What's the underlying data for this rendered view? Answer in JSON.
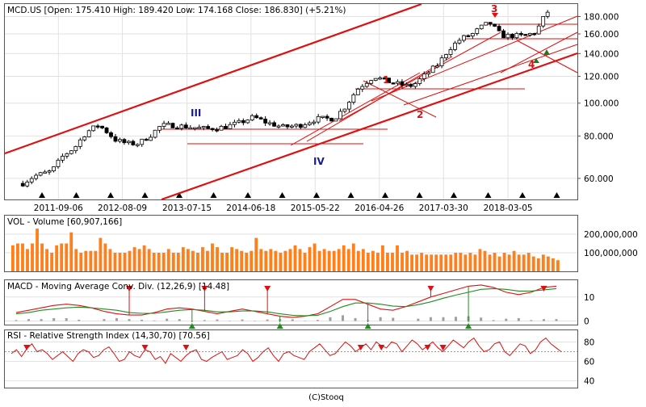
{
  "chart_data": [
    {
      "type": "candlestick",
      "title": "MCD.US [Open: 175.410  High: 189.420  Low: 174.168  Close: 186.830]  (+5.21%)",
      "y_scale": "log",
      "ylim": [
        52,
        196
      ],
      "y_ticks": [
        "60.000",
        "80.000",
        "100.000",
        "120.000",
        "140.000",
        "160.000",
        "180.000"
      ],
      "date_labels": [
        "2011-09-06",
        "2012-08-09",
        "2013-07-15",
        "2014-06-18",
        "2015-05-22",
        "2016-04-26",
        "2017-03-30",
        "2018-03-05"
      ],
      "annotations": [
        "III",
        "IV",
        "1",
        "2",
        "3",
        "4"
      ],
      "close_path": [
        {
          "date": "2011-03",
          "value": 58
        },
        {
          "date": "2011-05",
          "value": 61
        },
        {
          "date": "2011-08",
          "value": 63
        },
        {
          "date": "2011-10",
          "value": 70
        },
        {
          "date": "2011-12",
          "value": 74
        },
        {
          "date": "2012-02",
          "value": 82
        },
        {
          "date": "2012-04",
          "value": 86
        },
        {
          "date": "2012-05",
          "value": 84
        },
        {
          "date": "2012-07",
          "value": 78
        },
        {
          "date": "2012-09",
          "value": 76
        },
        {
          "date": "2012-11",
          "value": 76
        },
        {
          "date": "2013-01",
          "value": 80
        },
        {
          "date": "2013-03",
          "value": 86
        },
        {
          "date": "2013-05",
          "value": 86
        },
        {
          "date": "2013-08",
          "value": 85
        },
        {
          "date": "2013-11",
          "value": 84
        },
        {
          "date": "2014-02",
          "value": 85
        },
        {
          "date": "2014-05",
          "value": 88
        },
        {
          "date": "2014-07",
          "value": 91
        },
        {
          "date": "2014-09",
          "value": 88
        },
        {
          "date": "2014-12",
          "value": 85
        },
        {
          "date": "2015-03",
          "value": 86
        },
        {
          "date": "2015-06",
          "value": 90
        },
        {
          "date": "2015-09",
          "value": 90
        },
        {
          "date": "2015-11",
          "value": 98
        },
        {
          "date": "2016-01",
          "value": 110
        },
        {
          "date": "2016-03",
          "value": 117
        },
        {
          "date": "2016-04",
          "value": 120
        },
        {
          "date": "2016-06",
          "value": 116
        },
        {
          "date": "2016-08",
          "value": 114
        },
        {
          "date": "2016-10",
          "value": 112
        },
        {
          "date": "2016-11",
          "value": 114
        },
        {
          "date": "2017-01",
          "value": 122
        },
        {
          "date": "2017-03",
          "value": 130
        },
        {
          "date": "2017-05",
          "value": 145
        },
        {
          "date": "2017-07",
          "value": 155
        },
        {
          "date": "2017-09",
          "value": 160
        },
        {
          "date": "2017-11",
          "value": 170
        },
        {
          "date": "2017-12",
          "value": 172
        },
        {
          "date": "2018-02",
          "value": 158
        },
        {
          "date": "2018-04",
          "value": 158
        },
        {
          "date": "2018-06",
          "value": 158
        },
        {
          "date": "2018-08",
          "value": 162
        },
        {
          "date": "2018-09",
          "value": 175
        },
        {
          "date": "2018-10",
          "value": 186
        }
      ]
    },
    {
      "type": "bar",
      "title": "VOL - Volume [60,907,166]",
      "y_ticks": [
        "100,000,000",
        "200,000,000"
      ],
      "ylim": [
        0,
        300000000
      ],
      "values": [
        140000000.0,
        150000000.0,
        150000000.0,
        120000000.0,
        150000000.0,
        230000000.0,
        150000000.0,
        120000000.0,
        100000000.0,
        140000000.0,
        150000000.0,
        150000000.0,
        210000000.0,
        120000000.0,
        100000000.0,
        110000000.0,
        110000000.0,
        110000000.0,
        180000000.0,
        150000000.0,
        120000000.0,
        100000000.0,
        100000000.0,
        100000000.0,
        110000000.0,
        130000000.0,
        120000000.0,
        140000000.0,
        120000000.0,
        100000000.0,
        100000000.0,
        100000000.0,
        120000000.0,
        100000000.0,
        100000000.0,
        130000000.0,
        120000000.0,
        110000000.0,
        100000000.0,
        130000000.0,
        110000000.0,
        150000000.0,
        130000000.0,
        100000000.0,
        100000000.0,
        130000000.0,
        120000000.0,
        110000000.0,
        100000000.0,
        110000000.0,
        180000000.0,
        120000000.0,
        110000000.0,
        120000000.0,
        110000000.0,
        100000000.0,
        110000000.0,
        120000000.0,
        140000000.0,
        120000000.0,
        100000000.0,
        130000000.0,
        150000000.0,
        110000000.0,
        120000000.0,
        110000000.0,
        110000000.0,
        120000000.0,
        140000000.0,
        120000000.0,
        150000000.0,
        110000000.0,
        120000000.0,
        100000000.0,
        110000000.0,
        100000000.0,
        140000000.0,
        100000000.0,
        100000000.0,
        140000000.0,
        100000000.0,
        110000000.0,
        90000000.0,
        90000000.0,
        100000000.0,
        90000000.0,
        90000000.0,
        90000000.0,
        90000000.0,
        90000000.0,
        90000000.0,
        100000000.0,
        100000000.0,
        90000000.0,
        100000000.0,
        90000000.0,
        120000000.0,
        110000000.0,
        90000000.0,
        100000000.0,
        80000000.0,
        100000000.0,
        90000000.0,
        110000000.0,
        90000000.0,
        90000000.0,
        100000000.0,
        80000000.0,
        70000000.0,
        90000000.0,
        80000000.0,
        70000000.0,
        60000000.0
      ]
    },
    {
      "type": "line",
      "title": "MACD - Moving Average Conv. Div. (12,26,9) [14.48]",
      "y_ticks": [
        "0",
        "10"
      ],
      "ylim": [
        -1.5,
        17
      ],
      "series": [
        {
          "values": [
            3.5,
            4.5,
            5.5,
            6.5,
            7,
            6.5,
            5.5,
            4,
            3,
            2.5,
            2.5,
            3.5,
            5,
            5.5,
            5,
            4,
            3,
            4,
            5,
            4,
            3,
            2,
            1.5,
            2,
            3,
            6,
            9,
            9,
            7,
            5,
            4.5,
            6,
            8,
            10,
            11.5,
            13,
            14.5,
            15,
            14,
            12,
            11,
            12,
            14,
            14.5
          ]
        },
        {
          "values": [
            3,
            3.5,
            4.5,
            5,
            5.5,
            5.8,
            5.5,
            5,
            4.5,
            3.5,
            3.2,
            3.2,
            3.8,
            4.5,
            4.8,
            4.5,
            3.8,
            3.8,
            4.2,
            4.2,
            3.8,
            3,
            2.4,
            2.2,
            2.4,
            4,
            6,
            7.5,
            7.5,
            7,
            6.2,
            6,
            6.8,
            8,
            9.5,
            10.8,
            12,
            13.2,
            13.5,
            13.2,
            12.5,
            12.5,
            13,
            13.5
          ]
        }
      ]
    },
    {
      "type": "line",
      "title": "RSI - Relative Strength Index (14,30,70) [70.56]",
      "y_ticks": [
        "40",
        "60",
        "80"
      ],
      "ylim": [
        33,
        92
      ],
      "levels": [
        30,
        70
      ],
      "series": [
        {
          "values": [
            68,
            72,
            65,
            73,
            78,
            70,
            72,
            68,
            62,
            66,
            70,
            65,
            60,
            68,
            72,
            70,
            64,
            66,
            72,
            75,
            68,
            60,
            62,
            70,
            66,
            64,
            72,
            70,
            62,
            65,
            58,
            68,
            64,
            60,
            66,
            70,
            72,
            62,
            60,
            64,
            67,
            70,
            62,
            64,
            66,
            72,
            68,
            60,
            64,
            70,
            74,
            66,
            60,
            68,
            70,
            66,
            64,
            62,
            70,
            74,
            78,
            72,
            66,
            68,
            74,
            80,
            76,
            70,
            74,
            78,
            72,
            80,
            76,
            74,
            80,
            78,
            70,
            76,
            82,
            78,
            72,
            76,
            80,
            74,
            70,
            76,
            82,
            78,
            74,
            80,
            84,
            76,
            70,
            72,
            78,
            80,
            70,
            66,
            72,
            78,
            76,
            68,
            72,
            80,
            84,
            78,
            74,
            70
          ]
        }
      ]
    }
  ],
  "footer": {
    "credit": "(C)Stooq"
  }
}
